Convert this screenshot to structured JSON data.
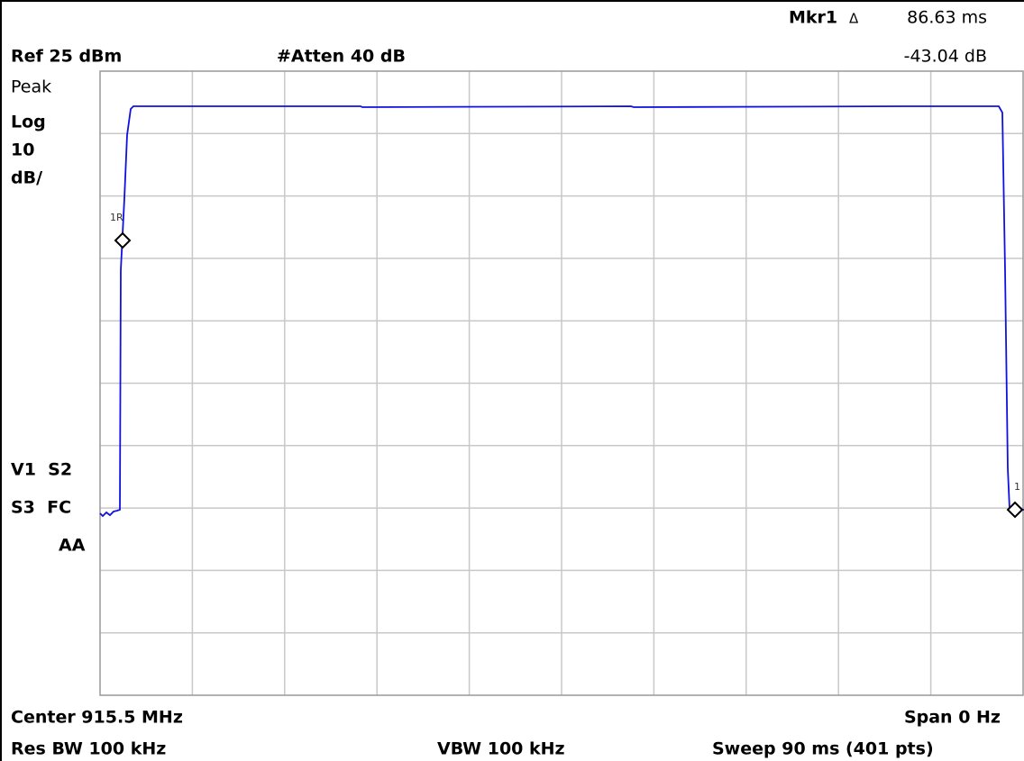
{
  "header": {
    "marker": "Mkr1",
    "delta": "Δ",
    "marker_time": "86.63 ms",
    "marker_level": "-43.04 dB",
    "ref": "Ref 25 dBm",
    "atten": "#Atten 40 dB"
  },
  "left_panel": {
    "detector": "Peak",
    "scale": "Log",
    "per_div": "10",
    "unit": "dB/",
    "flags_1": "V1  S2",
    "flags_2": "S3  FC",
    "flags_3": "AA"
  },
  "markers": [
    "1R",
    "1"
  ],
  "footer": {
    "center": "Center 915.5 MHz",
    "span": "Span 0 Hz",
    "rbw": "Res BW 100 kHz",
    "vbw": "VBW 100 kHz",
    "sweep": "Sweep 90 ms (401 pts)"
  }
}
